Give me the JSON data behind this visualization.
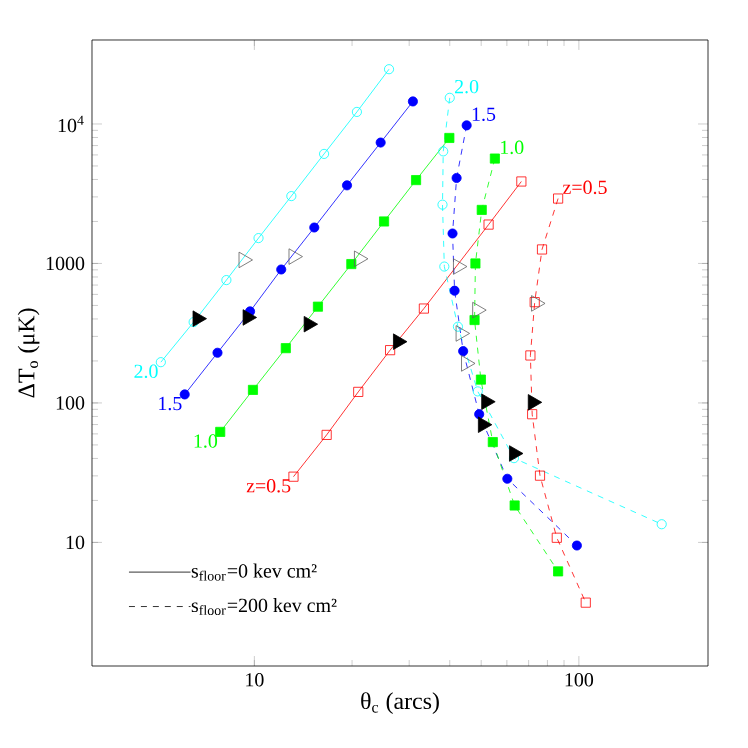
{
  "chart_data": {
    "type": "line",
    "xlabel": "θ$_{c}$ (arcs)",
    "ylabel": "ΔT$_{o}$ (μK)",
    "log": "xy",
    "xlim": [
      3.16,
      250
    ],
    "ylim": [
      1.3,
      40000
    ],
    "xticks": [
      10,
      100
    ],
    "yticks": [
      10,
      100,
      1000,
      {
        "value": 10000,
        "label": "10$^{4}$"
      }
    ],
    "annotations": [
      "s$_{floor}$=0 kev cm²",
      "s$_{floor}$=200 kev cm²"
    ],
    "series": [
      {
        "name": "2.0",
        "color": "#00ffff",
        "marker": "circle",
        "line_style": "solid",
        "x": [
          5.15,
          6.5,
          8.2,
          10.3,
          13.0,
          16.4,
          20.7,
          26.0
        ],
        "values": [
          196,
          380,
          760,
          1520,
          3040,
          6100,
          12200,
          24700
        ]
      },
      {
        "name": "1.5",
        "color": "#0000ff",
        "marker": "circle",
        "line_style": "solid",
        "x": [
          6.1,
          7.7,
          9.7,
          12.1,
          15.3,
          19.3,
          24.5,
          30.8
        ],
        "values": [
          115,
          229,
          453,
          905,
          1810,
          3630,
          7360,
          14500
        ]
      },
      {
        "name": "1.0",
        "color": "#00ff00",
        "marker": "square",
        "line_style": "solid",
        "x": [
          7.85,
          9.9,
          12.5,
          15.7,
          19.9,
          25.1,
          31.5,
          39.9
        ],
        "values": [
          62,
          124,
          247,
          490,
          990,
          2000,
          3960,
          7940
        ]
      },
      {
        "name": "z=0.5",
        "color": "#ff0000",
        "marker": "square",
        "line_style": "solid",
        "x": [
          13.2,
          16.7,
          20.9,
          26.2,
          33.3,
          52.7,
          66.5
        ],
        "values": [
          29.6,
          59,
          120,
          239,
          475,
          1900,
          3870
        ]
      },
      {
        "name": "2.0",
        "color": "#00ffff",
        "marker": "circle",
        "line_style": "dashed",
        "x": [
          40.0,
          38.2,
          38.0,
          38.5,
          42.4,
          48.8,
          63.1,
          180
        ],
        "values": [
          15400,
          6360,
          2640,
          950,
          352,
          121,
          40.2,
          13.5
        ]
      },
      {
        "name": "1.5",
        "color": "#0000ff",
        "marker": "circle",
        "line_style": "dashed",
        "x": [
          45.1,
          42.0,
          40.8,
          41.4,
          44.0,
          49.3,
          60.2,
          98.6
        ],
        "values": [
          9770,
          4100,
          1640,
          638,
          235,
          83,
          28.6,
          9.5
        ]
      },
      {
        "name": "1.0",
        "color": "#00ff00",
        "marker": "square",
        "line_style": "dashed",
        "x": [
          55.1,
          50.2,
          48.0,
          47.7,
          49.9,
          54.3,
          63.4,
          86.3
        ],
        "values": [
          5650,
          2420,
          1000,
          393,
          147,
          52.4,
          18.4,
          6.2
        ]
      },
      {
        "name": "z=0.5",
        "color": "#ff0000",
        "marker": "square",
        "line_style": "dashed",
        "x": [
          86.3,
          77.0,
          73.1,
          70.9,
          71.8,
          75.9,
          85.5,
          105
        ],
        "values": [
          2920,
          1260,
          528,
          219,
          83,
          30.1,
          10.8,
          3.7
        ]
      },
      {
        "type": "scatter",
        "color": "#606060",
        "marker": "triangle",
        "x": [
          9.26,
          13.2,
          21.0,
          42.4,
          48.6,
          73.8,
          43.2,
          44.9
        ],
        "values": [
          1060,
          1120,
          1080,
          950,
          463,
          517,
          315,
          192
        ]
      },
      {
        "type": "scatter",
        "color": "#000000",
        "marker": "triangle",
        "x": [
          6.68,
          9.53,
          14.7,
          27.7,
          51.8,
          72.1,
          50.6,
          63.1
        ],
        "values": [
          402,
          410,
          367,
          275,
          102,
          101,
          69.8,
          43.4
        ]
      }
    ]
  }
}
